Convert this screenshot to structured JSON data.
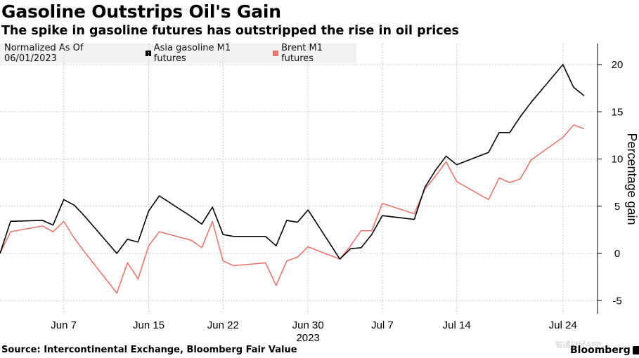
{
  "title": "Gasoline Outstrips Oil's Gain",
  "subtitle": "The spike in gasoline futures has outstripped the rise in oil prices",
  "legend": {
    "note": "Normalized As Of 06/01/2023",
    "items": [
      {
        "label": "Asia gasoline M1 futures",
        "color": "#000000"
      },
      {
        "label": "Brent M1 futures",
        "color": "#e8766d"
      }
    ]
  },
  "source": "Source: Intercontinental Exchange, Bloomberg Fair Value",
  "brand": "Bloomberg",
  "watermark": "智通财经APP",
  "chart_data": {
    "type": "line",
    "title": "Gasoline Outstrips Oil's Gain",
    "subtitle": "The spike in gasoline futures has outstripped the rise in oil prices",
    "xlabel": "",
    "ylabel": "Percentage gain",
    "ylim": [
      -5.5,
      22.5
    ],
    "yticks": [
      -5,
      0,
      5,
      10,
      15,
      20
    ],
    "grid": true,
    "legend_position": "top-left",
    "x": [
      "2023-06-01",
      "2023-06-02",
      "2023-06-05",
      "2023-06-06",
      "2023-06-07",
      "2023-06-08",
      "2023-06-09",
      "2023-06-12",
      "2023-06-13",
      "2023-06-14",
      "2023-06-15",
      "2023-06-16",
      "2023-06-19",
      "2023-06-20",
      "2023-06-21",
      "2023-06-22",
      "2023-06-23",
      "2023-06-26",
      "2023-06-27",
      "2023-06-28",
      "2023-06-29",
      "2023-06-30",
      "2023-07-03",
      "2023-07-04",
      "2023-07-05",
      "2023-07-06",
      "2023-07-07",
      "2023-07-10",
      "2023-07-11",
      "2023-07-12",
      "2023-07-13",
      "2023-07-14",
      "2023-07-17",
      "2023-07-18",
      "2023-07-19",
      "2023-07-20",
      "2023-07-21",
      "2023-07-24",
      "2023-07-25",
      "2023-07-26"
    ],
    "x_ticks": [
      {
        "date": "2023-06-07",
        "label": "Jun 7"
      },
      {
        "date": "2023-06-15",
        "label": "Jun 15"
      },
      {
        "date": "2023-06-22",
        "label": "Jun 22"
      },
      {
        "date": "2023-06-30",
        "label": "Jun 30"
      },
      {
        "date": "2023-07-07",
        "label": "Jul 7"
      },
      {
        "date": "2023-07-14",
        "label": "Jul 14"
      },
      {
        "date": "2023-07-24",
        "label": "Jul 24"
      }
    ],
    "x_year_label": "2023",
    "series": [
      {
        "name": "Asia gasoline M1 futures",
        "color": "#000000",
        "values": [
          0.0,
          3.4,
          3.5,
          3.0,
          5.7,
          5.1,
          3.9,
          0.0,
          1.5,
          1.2,
          4.5,
          6.1,
          3.9,
          3.1,
          4.9,
          2.0,
          1.8,
          1.8,
          0.8,
          3.5,
          3.3,
          4.6,
          -0.6,
          0.5,
          0.6,
          2.0,
          4.0,
          3.6,
          7.0,
          8.8,
          10.3,
          9.4,
          10.7,
          12.8,
          12.8,
          14.5,
          16.0,
          20.0,
          17.6,
          16.7
        ]
      },
      {
        "name": "Brent M1 futures",
        "color": "#e8766d",
        "values": [
          0.0,
          2.3,
          2.9,
          2.3,
          3.4,
          1.6,
          0.1,
          -4.2,
          -1.0,
          -2.7,
          0.8,
          2.3,
          1.4,
          0.6,
          3.4,
          -0.8,
          -1.3,
          -1.0,
          -3.4,
          -0.8,
          -0.4,
          0.7,
          -0.6,
          0.8,
          2.4,
          2.4,
          5.3,
          4.2,
          6.8,
          8.2,
          9.7,
          7.6,
          5.7,
          8.0,
          7.5,
          7.9,
          9.9,
          12.3,
          13.6,
          13.2
        ]
      }
    ]
  }
}
